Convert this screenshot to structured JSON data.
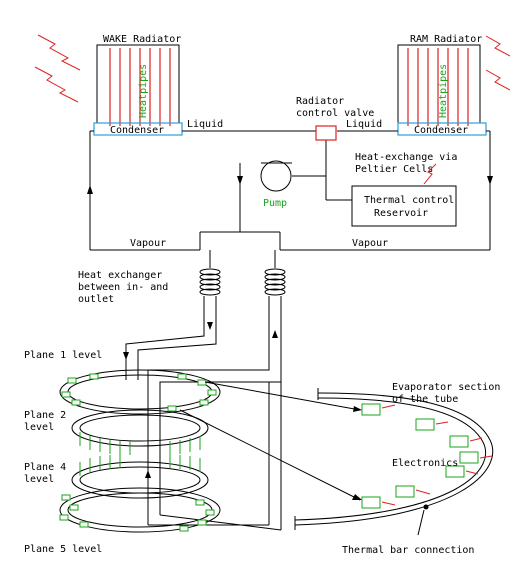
{
  "labels": {
    "wake_radiator": "WAKE Radiator",
    "ram_radiator": "RAM Radiator",
    "heatpipes_left": "Heatpipes",
    "heatpipes_right": "Heatpipes",
    "condenser_left": "Condenser",
    "condenser_right": "Condenser",
    "liquid_left": "Liquid",
    "liquid_right": "Liquid",
    "valve_line1": "Radiator",
    "valve_line2": "control valve",
    "peltier_line1": "Heat-exchange via",
    "peltier_line2": "Peltier Cells",
    "pump": "Pump",
    "reservoir_line1": "Thermal control",
    "reservoir_line2": "Reservoir",
    "vapour_left": "Vapour",
    "vapour_right": "Vapour",
    "hx_line1": "Heat exchanger",
    "hx_line2": "between in- and",
    "hx_line3": "outlet",
    "plane1": "Plane 1 level",
    "plane2_line1": "Plane 2",
    "plane2_line2": "level",
    "plane4_line1": "Plane 4",
    "plane4_line2": "level",
    "plane5": "Plane 5 level",
    "evap_line1": "Evaporator section",
    "evap_line2": "of the tube",
    "electronics": "Electronics",
    "thermal_bar": "Thermal bar connection"
  },
  "colors": {
    "line": "#000000",
    "radiator_red": "#e02020",
    "green": "#1aa31a",
    "condenser_blue": "#2aa0d8",
    "arrow_red": "#e02020"
  }
}
